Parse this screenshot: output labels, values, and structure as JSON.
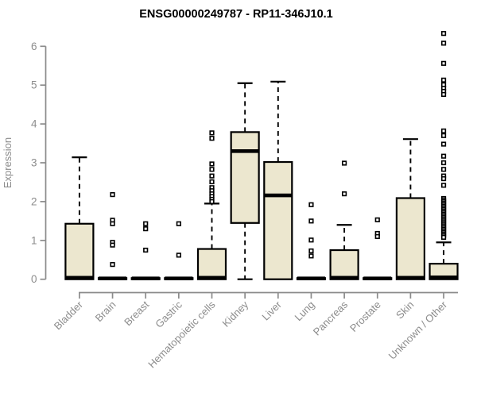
{
  "chart_data": {
    "type": "boxplot",
    "title": "ENSG00000249787 - RP11-346J10.1",
    "ylabel": "Expression",
    "xlabel": "",
    "ylim": [
      0,
      6
    ],
    "yticks": [
      0,
      1,
      2,
      3,
      4,
      5,
      6
    ],
    "grid": false,
    "legend": false,
    "categories": [
      "Bladder",
      "Brain",
      "Breast",
      "Gastric",
      "Hematopoietic cells",
      "Kidney",
      "Liver",
      "Lung",
      "Pancreas",
      "Prostate",
      "Skin",
      "Unknown / Other"
    ],
    "boxes": [
      {
        "label": "Bladder",
        "q1": 0,
        "median": 0.04,
        "q3": 1.43,
        "whisker_low": 0,
        "whisker_high": 3.14,
        "outliers": []
      },
      {
        "label": "Brain",
        "q1": 0,
        "median": 0.02,
        "q3": 0.03,
        "whisker_low": 0,
        "whisker_high": 0.03,
        "outliers": [
          2.18,
          1.52,
          1.43,
          0.95,
          0.88,
          0.38
        ]
      },
      {
        "label": "Breast",
        "q1": 0,
        "median": 0.02,
        "q3": 0.03,
        "whisker_low": 0,
        "whisker_high": 0.03,
        "outliers": [
          1.43,
          1.3,
          0.75
        ]
      },
      {
        "label": "Gastric",
        "q1": 0,
        "median": 0.02,
        "q3": 0.03,
        "whisker_low": 0,
        "whisker_high": 0.03,
        "outliers": [
          1.43,
          0.62
        ]
      },
      {
        "label": "Hematopoietic cells",
        "q1": 0,
        "median": 0.04,
        "q3": 0.78,
        "whisker_low": 0,
        "whisker_high": 1.95,
        "outliers": [
          3.77,
          3.63,
          2.97,
          2.83,
          2.66,
          2.51,
          2.36,
          2.28,
          2.2,
          2.13,
          2.06,
          2.0
        ]
      },
      {
        "label": "Kidney",
        "q1": 1.45,
        "median": 3.3,
        "q3": 3.79,
        "whisker_low": 0,
        "whisker_high": 5.05,
        "outliers": []
      },
      {
        "label": "Liver",
        "q1": 0,
        "median": 2.16,
        "q3": 3.02,
        "whisker_low": 0,
        "whisker_high": 5.09,
        "outliers": []
      },
      {
        "label": "Lung",
        "q1": 0,
        "median": 0.02,
        "q3": 0.03,
        "whisker_low": 0,
        "whisker_high": 0.03,
        "outliers": [
          1.92,
          1.5,
          1.01,
          0.73,
          0.6
        ]
      },
      {
        "label": "Pancreas",
        "q1": 0,
        "median": 0.04,
        "q3": 0.75,
        "whisker_low": 0,
        "whisker_high": 1.4,
        "outliers": [
          2.99,
          2.2
        ]
      },
      {
        "label": "Prostate",
        "q1": 0,
        "median": 0.02,
        "q3": 0.03,
        "whisker_low": 0,
        "whisker_high": 0.03,
        "outliers": [
          1.53,
          1.18,
          1.1
        ]
      },
      {
        "label": "Skin",
        "q1": 0,
        "median": 0.04,
        "q3": 2.09,
        "whisker_low": 0,
        "whisker_high": 3.61,
        "outliers": []
      },
      {
        "label": "Unknown / Other",
        "q1": 0,
        "median": 0.05,
        "q3": 0.4,
        "whisker_low": 0,
        "whisker_high": 0.95,
        "outliers": [
          6.33,
          6.08,
          5.56,
          5.13,
          5.01,
          4.92,
          4.84,
          4.76,
          3.82,
          3.7,
          3.48,
          3.17,
          3.0,
          2.83,
          2.66,
          2.59,
          2.42,
          2.08,
          2.04,
          2.0,
          1.96,
          1.92,
          1.88,
          1.84,
          1.8,
          1.76,
          1.72,
          1.68,
          1.64,
          1.6,
          1.56,
          1.52,
          1.48,
          1.44,
          1.4,
          1.36,
          1.32,
          1.28,
          1.24,
          1.2,
          1.16,
          1.12,
          1.08
        ]
      }
    ],
    "colors": {
      "box_fill": "#ece7cf",
      "box_border": "#000000",
      "median": "#000000",
      "whisker": "#000000",
      "outlier_fill": "#ffffff",
      "axis": "#8b8b8b",
      "tick_text": "#8c8c8c",
      "title_text": "#000000",
      "background": "#ffffff"
    }
  }
}
